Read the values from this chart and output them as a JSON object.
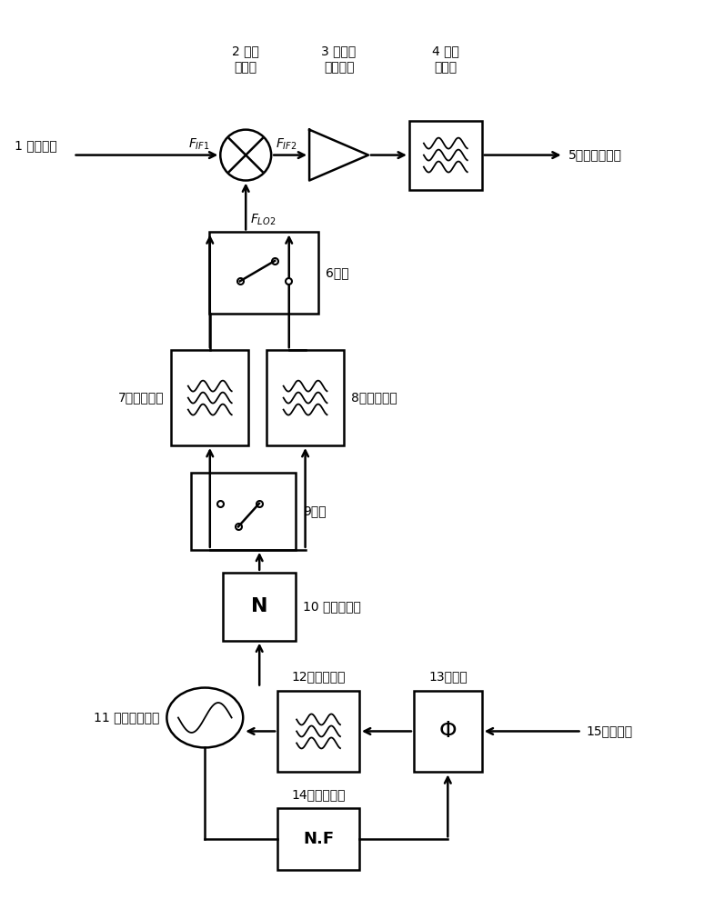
{
  "bg_color": "#ffffff",
  "line_color": "#000000",
  "labels": {
    "1": "1 第一中频",
    "2_line1": "2 第二",
    "2_line2": "变频器",
    "3_line1": "3 第二中",
    "3_line2": "频放大器",
    "4_line1": "4 低通",
    "4_line2": "滤波器",
    "5": "5任意中频输出",
    "6": "6开关",
    "7": "7带通滤波器",
    "8": "8带通滤波器",
    "9": "9开关",
    "10": "10 整数分频器",
    "11": "11 第二本振荡器",
    "12": "12积分滤波器",
    "13": "13鉴相器",
    "14": "14小数分频器",
    "15": "15参考信号"
  }
}
